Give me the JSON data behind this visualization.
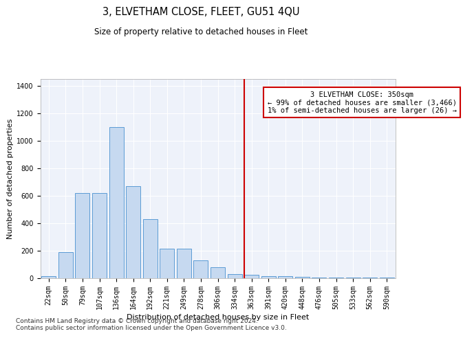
{
  "title": "3, ELVETHAM CLOSE, FLEET, GU51 4QU",
  "subtitle": "Size of property relative to detached houses in Fleet",
  "xlabel": "Distribution of detached houses by size in Fleet",
  "ylabel": "Number of detached properties",
  "bin_labels": [
    "22sqm",
    "50sqm",
    "79sqm",
    "107sqm",
    "136sqm",
    "164sqm",
    "192sqm",
    "221sqm",
    "249sqm",
    "278sqm",
    "306sqm",
    "334sqm",
    "363sqm",
    "391sqm",
    "420sqm",
    "448sqm",
    "476sqm",
    "505sqm",
    "533sqm",
    "562sqm",
    "590sqm"
  ],
  "bar_heights": [
    15,
    190,
    620,
    620,
    1100,
    670,
    430,
    215,
    215,
    130,
    80,
    28,
    25,
    12,
    12,
    8,
    5,
    5,
    4,
    4,
    4
  ],
  "bar_color": "#c6d9f0",
  "bar_edge_color": "#5b9bd5",
  "vline_color": "#cc0000",
  "annotation_text": "3 ELVETHAM CLOSE: 350sqm\n← 99% of detached houses are smaller (3,466)\n1% of semi-detached houses are larger (26) →",
  "annotation_box_color": "#cc0000",
  "annotation_text_color": "#000000",
  "ylim": [
    0,
    1450
  ],
  "yticks": [
    0,
    200,
    400,
    600,
    800,
    1000,
    1200,
    1400
  ],
  "background_color": "#eef2fa",
  "grid_color": "#ffffff",
  "title_fontsize": 10.5,
  "subtitle_fontsize": 8.5,
  "axis_label_fontsize": 8,
  "tick_fontsize": 7,
  "footer_text": "Contains HM Land Registry data © Crown copyright and database right 2024.\nContains public sector information licensed under the Open Government Licence v3.0.",
  "footer_fontsize": 6.5
}
